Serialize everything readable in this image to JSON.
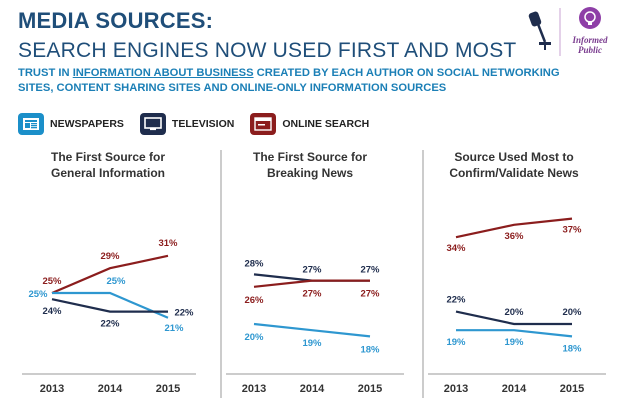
{
  "header": {
    "title_line1": "MEDIA SOURCES:",
    "title_line2": "SEARCH ENGINES NOW USED FIRST AND MOST",
    "subtitle_pre": "TRUST IN ",
    "subtitle_link": "INFORMATION ABOUT BUSINESS",
    "subtitle_post": " CREATED BY EACH AUTHOR ON SOCIAL NETWORKING SITES, CONTENT SHARING SITES AND ONLINE-ONLY INFORMATION SOURCES"
  },
  "logo": {
    "line1": "Informed",
    "line2": "Public",
    "icon": "microphone-icon"
  },
  "legend": [
    {
      "label": "NEWSPAPERS",
      "icon": "newspaper-icon",
      "color": "#1b8fc9"
    },
    {
      "label": "TELEVISION",
      "icon": "television-icon",
      "color": "#1f2d4d"
    },
    {
      "label": "ONLINE SEARCH",
      "icon": "online-search-icon",
      "color": "#8b1d1d"
    }
  ],
  "colors": {
    "newspapers": "#2e97d0",
    "television": "#1f2d4d",
    "online": "#8b1d1d"
  },
  "chart_data": [
    {
      "type": "line",
      "title": [
        "The First Source for",
        "General Information"
      ],
      "categories": [
        "2013",
        "2014",
        "2015"
      ],
      "series": [
        {
          "name": "ONLINE SEARCH",
          "values": [
            25,
            29,
            31
          ],
          "labels": [
            "25%",
            "29%",
            "31%"
          ]
        },
        {
          "name": "NEWSPAPERS",
          "values": [
            25,
            25,
            21
          ],
          "labels": [
            "25%",
            "25%",
            "21%"
          ]
        },
        {
          "name": "TELEVISION",
          "values": [
            24,
            22,
            22
          ],
          "labels": [
            "24%",
            "22%",
            "22%"
          ]
        }
      ],
      "ylim": [
        15,
        40
      ]
    },
    {
      "type": "line",
      "title": [
        "The First Source for",
        "Breaking News"
      ],
      "categories": [
        "2013",
        "2014",
        "2015"
      ],
      "series": [
        {
          "name": "TELEVISION",
          "values": [
            28,
            27,
            27
          ],
          "labels": [
            "28%",
            "27%",
            "27%"
          ]
        },
        {
          "name": "ONLINE SEARCH",
          "values": [
            26,
            27,
            27
          ],
          "labels": [
            "26%",
            "27%",
            "27%"
          ]
        },
        {
          "name": "NEWSPAPERS",
          "values": [
            20,
            19,
            18
          ],
          "labels": [
            "20%",
            "19%",
            "18%"
          ]
        }
      ],
      "ylim": [
        15,
        40
      ]
    },
    {
      "type": "line",
      "title": [
        "Source Used Most to",
        "Confirm/Validate News"
      ],
      "categories": [
        "2013",
        "2014",
        "2015"
      ],
      "series": [
        {
          "name": "ONLINE SEARCH",
          "values": [
            34,
            36,
            37
          ],
          "labels": [
            "34%",
            "36%",
            "37%"
          ]
        },
        {
          "name": "TELEVISION",
          "values": [
            22,
            20,
            20
          ],
          "labels": [
            "22%",
            "20%",
            "20%"
          ]
        },
        {
          "name": "NEWSPAPERS",
          "values": [
            19,
            19,
            18
          ],
          "labels": [
            "19%",
            "19%",
            "18%"
          ]
        }
      ],
      "ylim": [
        15,
        40
      ]
    }
  ]
}
